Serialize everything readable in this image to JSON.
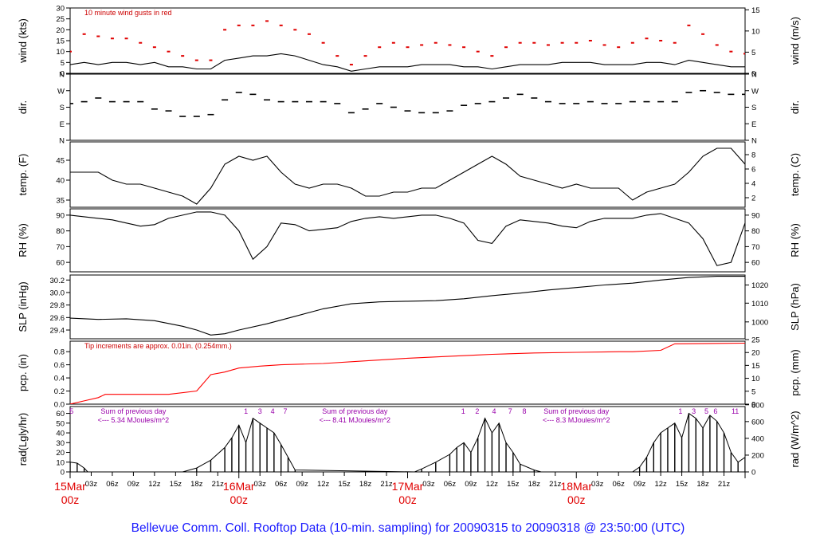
{
  "title": "Bellevue Comm. Coll. Rooftop Data (10-min. sampling) for 20090315  to  20090318 @ 23:50:00  (UTC)",
  "colors": {
    "axis": "#000000",
    "gust": "#e00000",
    "rain": "#ff0000",
    "note": "#cc0000",
    "day": "#e00000",
    "title": "#1a1aff",
    "sum": "#9900aa"
  },
  "x_axis": {
    "type": "time",
    "start": "2009-03-15 00z",
    "end": "2009-03-19 00z",
    "unit": "hours",
    "tick_every_hours": 3,
    "hour_labels": [
      "03z",
      "06z",
      "09z",
      "12z",
      "15z",
      "18z",
      "21z"
    ],
    "day_labels": [
      {
        "day": "15Mar",
        "hour": "00z"
      },
      {
        "day": "16Mar",
        "hour": "00z"
      },
      {
        "day": "17Mar",
        "hour": "00z"
      },
      {
        "day": "18Mar",
        "hour": "00z"
      }
    ]
  },
  "chart_data": [
    {
      "type": "line",
      "id": "wind",
      "ylabel": "wind (kts)",
      "ylabel_right": "wind (m/s)",
      "ylim": [
        0,
        30
      ],
      "yticks": [
        0,
        5,
        10,
        15,
        20,
        25,
        30
      ],
      "right_ticks": [
        {
          "label": "0",
          "at": 0
        },
        {
          "label": "5",
          "at": 9.72
        },
        {
          "label": "10",
          "at": 19.44
        },
        {
          "label": "15",
          "at": 29.16
        }
      ],
      "annotation": "10  minute wind gusts in red",
      "series": [
        {
          "style": "line",
          "x": [
            0,
            2,
            4,
            6,
            8,
            10,
            12,
            14,
            16,
            18,
            20,
            22,
            24,
            26,
            28,
            30,
            32,
            34,
            36,
            38,
            40,
            42,
            44,
            46,
            48,
            50,
            52,
            54,
            56,
            58,
            60,
            62,
            64,
            66,
            68,
            70,
            72,
            74,
            76,
            78,
            80,
            82,
            84,
            86,
            88,
            90,
            92,
            94,
            96
          ],
          "values": [
            4,
            5,
            4,
            5,
            5,
            4,
            5,
            3,
            3,
            2,
            2,
            6,
            7,
            8,
            8,
            9,
            8,
            6,
            4,
            3,
            1,
            2,
            3,
            3,
            3,
            4,
            4,
            4,
            3,
            3,
            2,
            3,
            4,
            4,
            4,
            5,
            5,
            5,
            4,
            4,
            4,
            5,
            5,
            4,
            6,
            5,
            4,
            3,
            3
          ]
        },
        {
          "name": "10  minute wind gusts",
          "style": "dots",
          "x": [
            0,
            2,
            4,
            6,
            8,
            10,
            12,
            14,
            16,
            18,
            20,
            22,
            24,
            26,
            28,
            30,
            32,
            34,
            36,
            38,
            40,
            42,
            44,
            46,
            48,
            50,
            52,
            54,
            56,
            58,
            60,
            62,
            64,
            66,
            68,
            70,
            72,
            74,
            76,
            78,
            80,
            82,
            84,
            86,
            88,
            90,
            92,
            94,
            96
          ],
          "values": [
            10,
            18,
            17,
            16,
            16,
            14,
            12,
            10,
            8,
            6,
            6,
            20,
            22,
            22,
            24,
            22,
            20,
            18,
            14,
            8,
            4,
            8,
            12,
            14,
            12,
            13,
            14,
            13,
            12,
            10,
            8,
            12,
            14,
            14,
            13,
            14,
            14,
            15,
            13,
            12,
            14,
            16,
            15,
            14,
            22,
            18,
            13,
            10,
            9
          ]
        }
      ]
    },
    {
      "type": "scatter",
      "id": "dir",
      "ylabel": "dir.",
      "ylabel_right": "dir.",
      "yticks": [
        {
          "label": "N",
          "at": 0
        },
        {
          "label": "E",
          "at": 90
        },
        {
          "label": "S",
          "at": 180
        },
        {
          "label": "W",
          "at": 270
        },
        {
          "label": "N",
          "at": 360
        }
      ],
      "ylim": [
        0,
        360
      ],
      "series": [
        {
          "x": [
            0,
            2,
            4,
            6,
            8,
            10,
            12,
            14,
            16,
            18,
            20,
            22,
            24,
            26,
            28,
            30,
            32,
            34,
            36,
            38,
            40,
            42,
            44,
            46,
            48,
            50,
            52,
            54,
            56,
            58,
            60,
            62,
            64,
            66,
            68,
            70,
            72,
            74,
            76,
            78,
            80,
            82,
            84,
            86,
            88,
            90,
            92,
            94,
            96
          ],
          "values": [
            200,
            210,
            230,
            210,
            210,
            210,
            170,
            160,
            130,
            130,
            140,
            220,
            260,
            250,
            220,
            210,
            210,
            210,
            210,
            200,
            150,
            170,
            200,
            180,
            160,
            150,
            150,
            160,
            190,
            200,
            210,
            230,
            250,
            230,
            210,
            200,
            200,
            210,
            200,
            200,
            210,
            210,
            210,
            210,
            260,
            270,
            260,
            250,
            250
          ]
        }
      ]
    },
    {
      "type": "line",
      "id": "temp",
      "ylabel": "temp. (F)",
      "ylabel_right": "temp. (C)",
      "ylim": [
        33.2,
        49.6
      ],
      "yticks": [
        35,
        40,
        45
      ],
      "right_ticks": [
        {
          "label": "2",
          "at": 35.6
        },
        {
          "label": "4",
          "at": 39.2
        },
        {
          "label": "6",
          "at": 42.8
        },
        {
          "label": "8",
          "at": 46.4
        }
      ],
      "series": [
        {
          "x": [
            0,
            2,
            4,
            6,
            8,
            10,
            12,
            14,
            16,
            18,
            20,
            22,
            24,
            26,
            28,
            30,
            32,
            34,
            36,
            38,
            40,
            42,
            44,
            46,
            48,
            50,
            52,
            54,
            56,
            58,
            60,
            62,
            64,
            66,
            68,
            70,
            72,
            74,
            76,
            78,
            80,
            82,
            84,
            86,
            88,
            90,
            92,
            94,
            96
          ],
          "values": [
            42,
            42,
            42,
            40,
            39,
            39,
            38,
            37,
            36,
            34,
            38,
            44,
            46,
            45,
            46,
            42,
            39,
            38,
            39,
            39,
            38,
            36,
            36,
            37,
            37,
            38,
            38,
            40,
            42,
            44,
            46,
            44,
            41,
            40,
            39,
            38,
            39,
            38,
            38,
            38,
            35,
            37,
            38,
            39,
            42,
            46,
            48,
            48,
            44
          ]
        }
      ]
    },
    {
      "type": "line",
      "id": "rh",
      "ylabel": "RH (%)",
      "ylabel_right": "RH (%)",
      "ylim": [
        54,
        94
      ],
      "yticks": [
        60,
        70,
        80,
        90
      ],
      "right_ticks": [
        {
          "label": "60",
          "at": 60
        },
        {
          "label": "70",
          "at": 70
        },
        {
          "label": "80",
          "at": 80
        },
        {
          "label": "90",
          "at": 90
        }
      ],
      "series": [
        {
          "x": [
            0,
            2,
            4,
            6,
            8,
            10,
            12,
            14,
            16,
            18,
            20,
            22,
            24,
            26,
            28,
            30,
            32,
            34,
            36,
            38,
            40,
            42,
            44,
            46,
            48,
            50,
            52,
            54,
            56,
            58,
            60,
            62,
            64,
            66,
            68,
            70,
            72,
            74,
            76,
            78,
            80,
            82,
            84,
            86,
            88,
            90,
            92,
            94,
            96
          ],
          "values": [
            90,
            89,
            88,
            87,
            85,
            83,
            84,
            88,
            90,
            92,
            92,
            90,
            80,
            62,
            70,
            85,
            84,
            80,
            81,
            82,
            86,
            88,
            89,
            88,
            89,
            90,
            90,
            88,
            85,
            74,
            72,
            83,
            87,
            86,
            85,
            83,
            82,
            86,
            88,
            88,
            88,
            90,
            91,
            88,
            85,
            75,
            58,
            60,
            85
          ]
        }
      ]
    },
    {
      "type": "line",
      "id": "slp",
      "ylabel": "SLP (inHg)",
      "ylabel_right": "SLP (hPa)",
      "ylim": [
        29.26,
        30.28
      ],
      "yticks": [
        29.4,
        29.6,
        29.8,
        30.0,
        30.2
      ],
      "right_ticks": [
        {
          "label": "1000",
          "at": 29.53
        },
        {
          "label": "1010",
          "at": 29.83
        },
        {
          "label": "1020",
          "at": 30.12
        }
      ],
      "series": [
        {
          "x": [
            0,
            4,
            8,
            12,
            16,
            18,
            20,
            22,
            24,
            28,
            32,
            36,
            40,
            44,
            48,
            52,
            56,
            60,
            64,
            68,
            72,
            76,
            80,
            84,
            88,
            92,
            96
          ],
          "values": [
            29.59,
            29.57,
            29.58,
            29.55,
            29.46,
            29.4,
            29.32,
            29.34,
            29.4,
            29.5,
            29.62,
            29.74,
            29.82,
            29.85,
            29.86,
            29.87,
            29.9,
            29.95,
            29.99,
            30.04,
            30.08,
            30.12,
            30.15,
            30.2,
            30.24,
            30.26,
            30.26
          ]
        }
      ]
    },
    {
      "type": "line",
      "id": "pcp",
      "ylabel": "pcp. (in)",
      "ylabel_right": "pcp. (mm)",
      "ylim": [
        0,
        0.96
      ],
      "yticks": [
        0.0,
        0.2,
        0.4,
        0.6,
        0.8
      ],
      "right_ticks": [
        {
          "label": "0",
          "at": 0
        },
        {
          "label": "5",
          "at": 0.197
        },
        {
          "label": "10",
          "at": 0.394
        },
        {
          "label": "15",
          "at": 0.591
        },
        {
          "label": "20",
          "at": 0.787
        },
        {
          "label": "25",
          "at": 0.984
        }
      ],
      "annotation": "Tip increments are approx. 0.01in. (0.254mm.)",
      "series": [
        {
          "x": [
            0,
            2,
            4,
            5,
            6,
            10,
            14,
            18,
            20,
            22,
            24,
            27,
            30,
            36,
            42,
            48,
            54,
            58,
            60,
            66,
            72,
            78,
            80,
            84,
            86,
            96
          ],
          "values": [
            0.0,
            0.05,
            0.1,
            0.15,
            0.15,
            0.15,
            0.15,
            0.2,
            0.45,
            0.49,
            0.55,
            0.58,
            0.6,
            0.62,
            0.66,
            0.7,
            0.73,
            0.75,
            0.76,
            0.78,
            0.79,
            0.8,
            0.8,
            0.82,
            0.92,
            0.93
          ]
        }
      ]
    },
    {
      "type": "area",
      "id": "rad",
      "ylabel": "rad(Lgly/hr)",
      "ylabel_right": "rad (W/m^2)",
      "ylim": [
        0,
        67
      ],
      "yticks": [
        0,
        10,
        20,
        30,
        40,
        50,
        60
      ],
      "right_ticks": [
        {
          "label": "0",
          "at": 0
        },
        {
          "label": "200",
          "at": 17.2
        },
        {
          "label": "400",
          "at": 34.4
        },
        {
          "label": "600",
          "at": 51.6
        },
        {
          "label": "800",
          "at": 68.8
        }
      ],
      "hour_marks": [
        {
          "label": "5",
          "x": 0.2
        },
        {
          "label": "1",
          "x": 25
        },
        {
          "label": "3",
          "x": 27
        },
        {
          "label": "4",
          "x": 28.8
        },
        {
          "label": "7",
          "x": 30.6
        },
        {
          "label": "1",
          "x": 55.9
        },
        {
          "label": "2",
          "x": 57.9
        },
        {
          "label": "4",
          "x": 60.3
        },
        {
          "label": "7",
          "x": 62.6
        },
        {
          "label": "8",
          "x": 64.6
        },
        {
          "label": "1",
          "x": 86.8
        },
        {
          "label": "3",
          "x": 88.7
        },
        {
          "label": "5",
          "x": 90.5
        },
        {
          "label": "6",
          "x": 91.8
        },
        {
          "label": "11",
          "x": 94.6
        }
      ],
      "daily_sums": [
        {
          "line1": "Sum of previous day",
          "line2": "<--- 5.34 MJoules/m^2",
          "x": 9
        },
        {
          "line1": "Sum of previous day",
          "line2": "<--- 8.41 MJoules/m^2",
          "x": 40.5
        },
        {
          "line1": "Sum of previous day",
          "line2": "<--- 8.3 MJoules/m^2",
          "x": 72
        }
      ],
      "series": [
        {
          "x": [
            0,
            1,
            2,
            2.5,
            16,
            18,
            20,
            22,
            23,
            24,
            25,
            26,
            27,
            28,
            29,
            30,
            31,
            32,
            49,
            50,
            52,
            54,
            55,
            56,
            57,
            58,
            59,
            60,
            61,
            62,
            63,
            64,
            66,
            67,
            80,
            81,
            82,
            83,
            84,
            85,
            86,
            87,
            88,
            89,
            90,
            91,
            92,
            93,
            94,
            95,
            96
          ],
          "values": [
            10,
            9,
            4,
            0,
            0,
            4,
            12,
            25,
            35,
            48,
            30,
            55,
            50,
            45,
            40,
            28,
            15,
            2,
            0,
            3,
            10,
            18,
            25,
            30,
            20,
            35,
            55,
            40,
            50,
            30,
            20,
            8,
            2,
            0,
            0,
            5,
            15,
            30,
            40,
            45,
            50,
            35,
            60,
            55,
            45,
            58,
            52,
            40,
            20,
            10,
            15
          ]
        }
      ]
    }
  ]
}
